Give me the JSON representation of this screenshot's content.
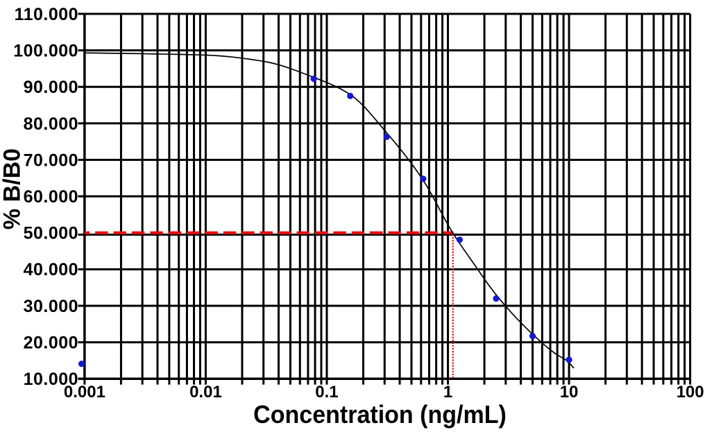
{
  "chart_data": {
    "type": "scatter",
    "xlabel": "Concentration (ng/mL)",
    "ylabel": "% B/B0",
    "x_scale": "log",
    "y_scale": "linear",
    "xlim": [
      0.001,
      100
    ],
    "ylim": [
      10,
      110
    ],
    "x_ticks": [
      0.001,
      0.01,
      0.1,
      1,
      10,
      100
    ],
    "x_tick_labels": [
      "0.001",
      "0.01",
      "0.1",
      "1",
      "10",
      "100"
    ],
    "y_ticks": [
      110,
      100,
      90,
      80,
      70,
      60,
      50,
      40,
      30,
      20,
      10
    ],
    "y_tick_labels": [
      "110.000",
      "100.000",
      "90.000",
      "80.000",
      "70.000",
      "60.000",
      "50.000",
      "40.000",
      "30.000",
      "20.000",
      "10.000"
    ],
    "grid": {
      "major": true,
      "log_minor": true,
      "color": "#000000"
    },
    "legend": "none",
    "points": [
      {
        "x": 0.001,
        "y": 14.1
      },
      {
        "x": 0.078,
        "y": 92.2
      },
      {
        "x": 0.156,
        "y": 87.5
      },
      {
        "x": 0.3125,
        "y": 76.3
      },
      {
        "x": 0.625,
        "y": 64.8
      },
      {
        "x": 1.25,
        "y": 48.1
      },
      {
        "x": 2.5,
        "y": 32.0
      },
      {
        "x": 5,
        "y": 21.7
      },
      {
        "x": 10,
        "y": 15.2
      }
    ],
    "curve_samples": [
      [
        0.001,
        99.3
      ],
      [
        0.00112,
        99.28
      ],
      [
        0.00126,
        99.26
      ],
      [
        0.00142,
        99.24
      ],
      [
        0.00159,
        99.22
      ],
      [
        0.00179,
        99.19
      ],
      [
        0.00201,
        99.17
      ],
      [
        0.00226,
        99.14
      ],
      [
        0.00253,
        99.12
      ],
      [
        0.00285,
        99.09
      ],
      [
        0.0032,
        99.06
      ],
      [
        0.00359,
        99.03
      ],
      [
        0.00403,
        99.0
      ],
      [
        0.00453,
        98.97
      ],
      [
        0.00509,
        98.94
      ],
      [
        0.00572,
        98.91
      ],
      [
        0.00642,
        98.88
      ],
      [
        0.00721,
        98.84
      ],
      [
        0.0081,
        98.8
      ],
      [
        0.0091,
        98.75
      ],
      [
        0.01022,
        98.69
      ],
      [
        0.01148,
        98.61
      ],
      [
        0.01289,
        98.5
      ],
      [
        0.01448,
        98.36
      ],
      [
        0.01626,
        98.2
      ],
      [
        0.01827,
        98.01
      ],
      [
        0.02052,
        97.8
      ],
      [
        0.02305,
        97.58
      ],
      [
        0.02589,
        97.33
      ],
      [
        0.02908,
        97.07
      ],
      [
        0.03266,
        96.77
      ],
      [
        0.03669,
        96.39
      ],
      [
        0.04121,
        95.92
      ],
      [
        0.04628,
        95.4
      ],
      [
        0.05199,
        94.82
      ],
      [
        0.05839,
        94.2
      ],
      [
        0.06559,
        93.56
      ],
      [
        0.07367,
        92.92
      ],
      [
        0.08275,
        92.27
      ],
      [
        0.09295,
        91.62
      ],
      [
        0.1044,
        90.93
      ],
      [
        0.11727,
        90.18
      ],
      [
        0.13172,
        89.34
      ],
      [
        0.14795,
        88.38
      ],
      [
        0.16618,
        87.25
      ],
      [
        0.18666,
        85.81
      ],
      [
        0.20966,
        84.11
      ],
      [
        0.2355,
        82.23
      ],
      [
        0.26452,
        80.25
      ],
      [
        0.29711,
        78.25
      ],
      [
        0.33373,
        76.29
      ],
      [
        0.37485,
        74.29
      ],
      [
        0.42104,
        72.23
      ],
      [
        0.47293,
        70.07
      ],
      [
        0.53121,
        67.8
      ],
      [
        0.59667,
        65.4
      ],
      [
        0.67019,
        62.79
      ],
      [
        0.75278,
        59.84
      ],
      [
        0.84554,
        56.69
      ],
      [
        0.94973,
        53.55
      ],
      [
        1.06677,
        50.61
      ],
      [
        1.19822,
        47.99
      ],
      [
        1.34588,
        45.54
      ],
      [
        1.51173,
        43.16
      ],
      [
        1.69801,
        40.76
      ],
      [
        1.90726,
        38.33
      ],
      [
        2.14228,
        35.94
      ],
      [
        2.40627,
        33.69
      ],
      [
        2.70279,
        31.64
      ],
      [
        3.03585,
        29.68
      ],
      [
        3.40995,
        27.8
      ],
      [
        3.83015,
        26.01
      ],
      [
        4.30213,
        24.3
      ],
      [
        4.83228,
        22.66
      ],
      [
        5.42775,
        21.1
      ],
      [
        6.09659,
        19.59
      ],
      [
        6.84786,
        18.18
      ],
      [
        7.69171,
        16.9
      ],
      [
        8.63954,
        15.87
      ],
      [
        9.70418,
        14.94
      ],
      [
        10.9,
        13.0
      ]
    ],
    "ic50_marker": {
      "y_value": 50.0,
      "x_value": 1.1,
      "horizontal_style": "thick red dashes from left axis to intercept",
      "vertical_style": "fine red dots from intercept down to x axis"
    },
    "colors": {
      "background": "#ffffff",
      "grid": "#000000",
      "curve": "#000000",
      "points": "#1717d2",
      "marker_lines": "#e60d0d",
      "text": "#000000"
    }
  }
}
